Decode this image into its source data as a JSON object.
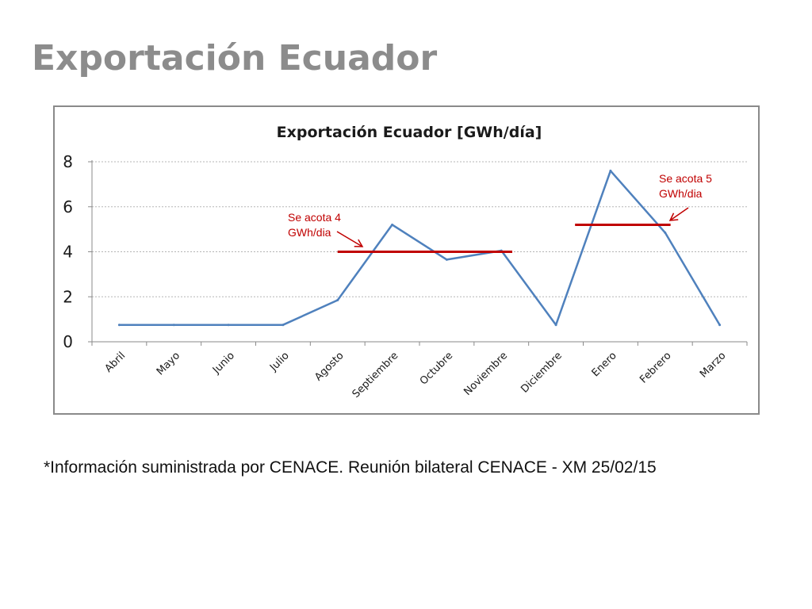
{
  "slide": {
    "title": "Exportación Ecuador",
    "footnote": "*Información suministrada por CENACE. Reunión bilateral CENACE - XM 25/02/15"
  },
  "colors": {
    "series": "#4f81bd",
    "threshold": "#c00000",
    "grid": "#b5b5b5",
    "title_gray": "#8c8c8c"
  },
  "chart_data": {
    "type": "line",
    "title": "Exportación Ecuador [GWh/día]",
    "xlabel": "",
    "ylabel": "",
    "ylim": [
      0,
      8
    ],
    "yticks": [
      0,
      2,
      4,
      6,
      8
    ],
    "grid": true,
    "categories": [
      "Abril",
      "Mayo",
      "Junio",
      "Julio",
      "Agosto",
      "Septiembre",
      "Octubre",
      "Noviembre",
      "Diciembre",
      "Enero",
      "Febrero",
      "Marzo"
    ],
    "series": [
      {
        "name": "Exportación Ecuador",
        "values": [
          0.75,
          0.75,
          0.75,
          0.75,
          1.85,
          5.2,
          3.65,
          4.05,
          0.75,
          7.6,
          4.85,
          0.75
        ]
      }
    ],
    "thresholds": [
      {
        "value": 4,
        "from_category": 4.5,
        "to_category": 7.7,
        "label_line1": "Se acota 4",
        "label_line2": "GWh/dia"
      },
      {
        "value": 5.2,
        "from_category": 8.85,
        "to_category": 10.6,
        "label_line1": "Se acota 5",
        "label_line2": "GWh/dia"
      }
    ]
  }
}
